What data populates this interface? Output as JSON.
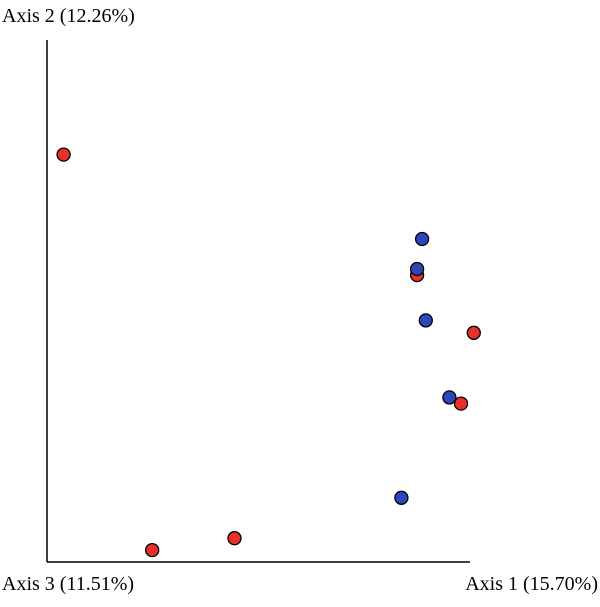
{
  "chart_data": {
    "type": "scatter",
    "title": "",
    "axis_labels": {
      "axis2": "Axis 2 (12.26%)",
      "axis3": "Axis 3 (11.51%)",
      "axis1": "Axis 1 (15.70%)"
    },
    "xlabel": "Axis 1 (15.70%)",
    "ylabel": "Axis 2 (12.26%)",
    "xlim": [
      0,
      100
    ],
    "ylim": [
      0,
      100
    ],
    "grid": false,
    "legend": false,
    "colors": {
      "red": "#e8302a",
      "blue": "#2f46b8",
      "axis": "#000000"
    },
    "series": [
      {
        "color": "red",
        "points": [
          {
            "x": 4.0,
            "y": 92.6
          },
          {
            "x": 89.4,
            "y": 65.2
          },
          {
            "x": 103.1,
            "y": 52.1
          },
          {
            "x": 100.0,
            "y": 36.0
          },
          {
            "x": 25.4,
            "y": 2.7
          },
          {
            "x": 45.3,
            "y": 5.4
          }
        ]
      },
      {
        "color": "blue",
        "points": [
          {
            "x": 90.6,
            "y": 73.4
          },
          {
            "x": 89.4,
            "y": 66.6
          },
          {
            "x": 91.5,
            "y": 54.9
          },
          {
            "x": 97.2,
            "y": 37.4
          },
          {
            "x": 85.6,
            "y": 14.6
          }
        ]
      }
    ]
  }
}
